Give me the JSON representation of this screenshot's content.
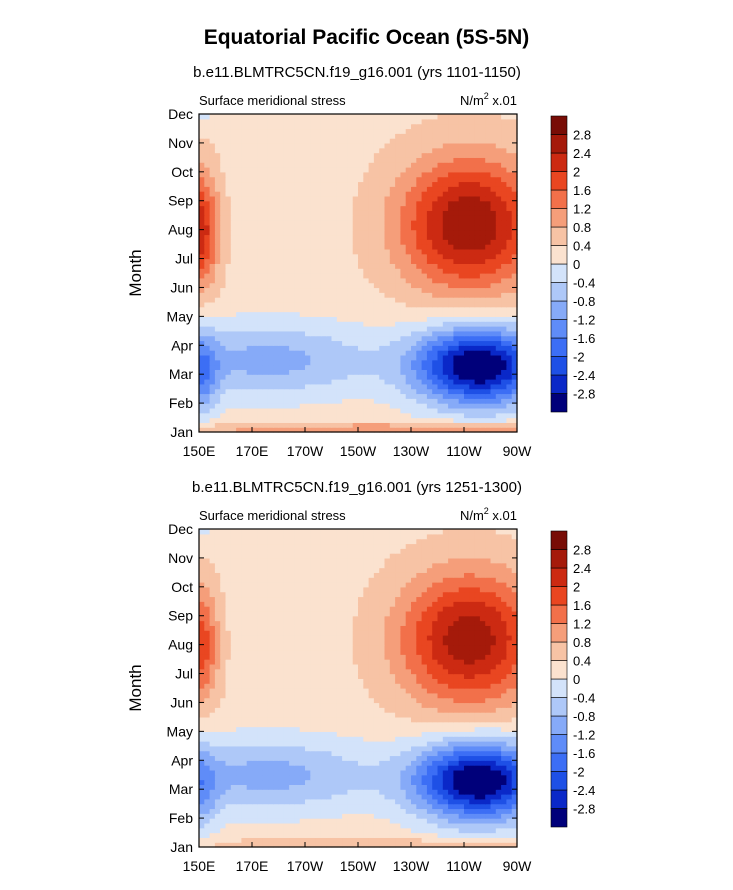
{
  "figure": {
    "title": "Equatorial Pacific Ocean (5S-5N)"
  },
  "chart_data": [
    {
      "type": "heatmap",
      "subtitle": "b.e11.BLMTRC5CN.f19_g16.001 (yrs 1101-1150)",
      "left_label": "Surface meridional stress",
      "units_label": "N/m",
      "units_sup": "2",
      "units_scale": " x.01",
      "ylabel": "Month",
      "xlabel": "",
      "x_ticks": [
        "150E",
        "170E",
        "170W",
        "150W",
        "130W",
        "110W",
        "90W"
      ],
      "y_ticks": [
        "Jan",
        "Feb",
        "Mar",
        "Apr",
        "May",
        "Jun",
        "Jul",
        "Aug",
        "Sep",
        "Oct",
        "Nov",
        "Dec"
      ],
      "xlim": [
        150,
        270
      ],
      "x_units": "degrees east",
      "color_levels": [
        "-2.8",
        "-2.4",
        "-2",
        "-1.6",
        "-1.2",
        "-0.8",
        "-0.4",
        "0",
        "0.4",
        "0.8",
        "1.2",
        "1.6",
        "2",
        "2.4",
        "2.8"
      ],
      "colors": [
        "#00007a",
        "#0a28c8",
        "#1e50e6",
        "#3c6ef5",
        "#5f8cf8",
        "#86aaf8",
        "#aec8f8",
        "#d3e3fa",
        "#fbe2cf",
        "#f7c3a5",
        "#f59e7a",
        "#f2704a",
        "#e94621",
        "#cc2a12",
        "#a51a0a",
        "#780d06"
      ],
      "features": [
        {
          "name": "Boreal summer positive maximum",
          "x_approx": "110W-95W",
          "month": "Aug",
          "value_approx": 2.6
        },
        {
          "name": "Boreal spring negative minimum",
          "x_approx": "120W-90W",
          "month": "Mar",
          "value_approx": -3.0
        },
        {
          "name": "Western boundary positive",
          "x_approx": "150E",
          "month": "Aug",
          "value_approx": 2.4
        }
      ]
    },
    {
      "type": "heatmap",
      "subtitle": "b.e11.BLMTRC5CN.f19_g16.001 (yrs 1251-1300)",
      "left_label": "Surface meridional stress",
      "units_label": "N/m",
      "units_sup": "2",
      "units_scale": " x.01",
      "ylabel": "Month",
      "xlabel": "",
      "x_ticks": [
        "150E",
        "170E",
        "170W",
        "150W",
        "130W",
        "110W",
        "90W"
      ],
      "y_ticks": [
        "Jan",
        "Feb",
        "Mar",
        "Apr",
        "May",
        "Jun",
        "Jul",
        "Aug",
        "Sep",
        "Oct",
        "Nov",
        "Dec"
      ],
      "xlim": [
        150,
        270
      ],
      "x_units": "degrees east",
      "color_levels": [
        "-2.8",
        "-2.4",
        "-2",
        "-1.6",
        "-1.2",
        "-0.8",
        "-0.4",
        "0",
        "0.4",
        "0.8",
        "1.2",
        "1.6",
        "2",
        "2.4",
        "2.8"
      ],
      "colors": [
        "#00007a",
        "#0a28c8",
        "#1e50e6",
        "#3c6ef5",
        "#5f8cf8",
        "#86aaf8",
        "#aec8f8",
        "#d3e3fa",
        "#fbe2cf",
        "#f7c3a5",
        "#f59e7a",
        "#f2704a",
        "#e94621",
        "#cc2a12",
        "#a51a0a",
        "#780d06"
      ],
      "features": [
        {
          "name": "Boreal summer positive maximum",
          "x_approx": "115W-95W",
          "month": "Jul-Aug",
          "value_approx": 2.5
        },
        {
          "name": "Boreal spring negative minimum",
          "x_approx": "125W-90W",
          "month": "Mar",
          "value_approx": -3.0
        },
        {
          "name": "Western boundary positive",
          "x_approx": "150E",
          "month": "Jul",
          "value_approx": 1.8
        }
      ]
    }
  ]
}
